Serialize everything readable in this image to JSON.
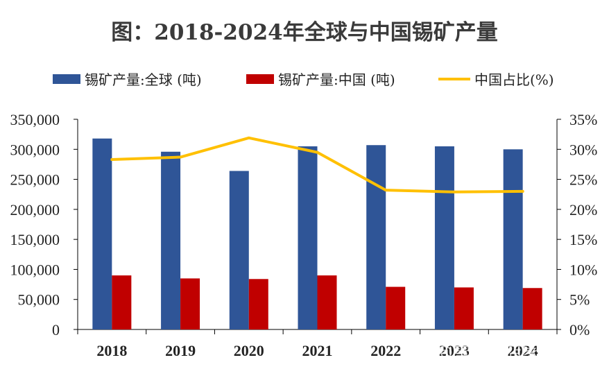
{
  "chart_data": {
    "type": "bar",
    "title": "图：2018-2024年全球与中国锡矿产量",
    "categories": [
      "2018",
      "2019",
      "2020",
      "2021",
      "2022",
      "2023",
      "2024"
    ],
    "series": [
      {
        "name": "锡矿产量:全球 (吨)",
        "type": "bar",
        "axis": "left",
        "color": "#2F5597",
        "values": [
          318000,
          296000,
          264000,
          305000,
          307000,
          305000,
          300000
        ]
      },
      {
        "name": "锡矿产量:中国 (吨)",
        "type": "bar",
        "axis": "left",
        "color": "#C00000",
        "values": [
          90000,
          85000,
          84000,
          90000,
          71000,
          70000,
          69000
        ]
      },
      {
        "name": "中国占比(%)",
        "type": "line",
        "axis": "right",
        "color": "#FFC000",
        "values": [
          28.3,
          28.7,
          31.9,
          29.5,
          23.2,
          22.9,
          23.0
        ]
      }
    ],
    "y_left": {
      "min": 0,
      "max": 350000,
      "ticks": [
        "0",
        "50,000",
        "100,000",
        "150,000",
        "200,000",
        "250,000",
        "300,000",
        "350,000"
      ]
    },
    "y_right": {
      "min": 0,
      "max": 35,
      "ticks": [
        "0%",
        "5%",
        "10%",
        "15%",
        "20%",
        "25%",
        "30%",
        "35%"
      ]
    },
    "grid": false,
    "legend_position": "top"
  },
  "watermark": "@雪球：店家嘴幽灵"
}
